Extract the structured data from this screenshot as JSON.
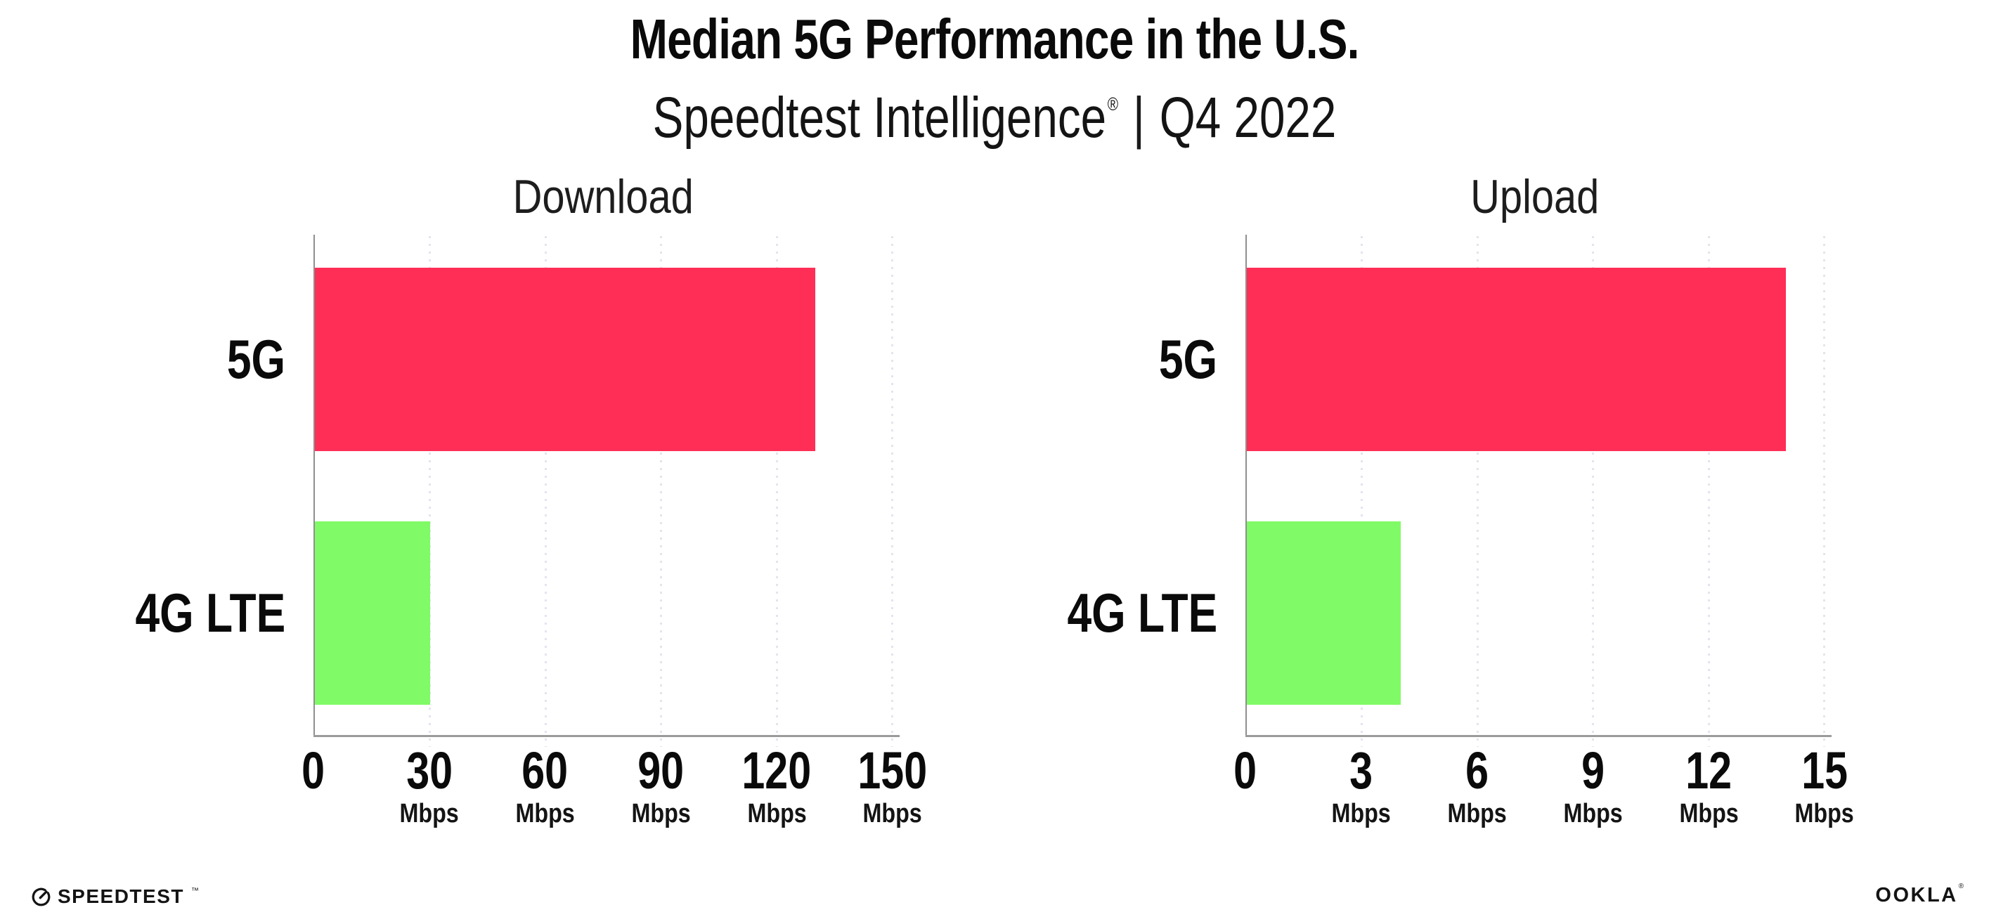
{
  "header": {
    "title": "Median 5G Performance in the U.S.",
    "subtitle_brand": "Speedtest Intelligence",
    "subtitle_reg": "®",
    "subtitle_sep": "|",
    "subtitle_period": "Q4 2022"
  },
  "chart_data": [
    {
      "type": "bar",
      "orientation": "horizontal",
      "title": "Download",
      "categories": [
        "5G",
        "4G LTE"
      ],
      "values": [
        130,
        30
      ],
      "unit": "Mbps",
      "xlim": [
        0,
        150
      ],
      "xticks": [
        0,
        30,
        60,
        90,
        120,
        150
      ],
      "bar_colors": [
        "#FF2E56",
        "#80FA66"
      ],
      "grid": "dotted-vertical",
      "legend": "none"
    },
    {
      "type": "bar",
      "orientation": "horizontal",
      "title": "Upload",
      "categories": [
        "5G",
        "4G LTE"
      ],
      "values": [
        14,
        4
      ],
      "unit": "Mbps",
      "xlim": [
        0,
        15
      ],
      "xticks": [
        0,
        3,
        6,
        9,
        12,
        15
      ],
      "bar_colors": [
        "#FF2E56",
        "#80FA66"
      ],
      "grid": "dotted-vertical",
      "legend": "none"
    }
  ],
  "footer": {
    "speedtest_label": "SPEEDTEST",
    "speedtest_tm": "™",
    "ookla_label": "OOKLA",
    "ookla_reg": "®"
  },
  "colors": {
    "background": "#FFFFFF",
    "bar_5g": "#FF2E56",
    "bar_4g": "#80FA66",
    "axis": "#9B9B9B",
    "gridline": "#E4E4EE",
    "text": "#0B0B0B"
  }
}
